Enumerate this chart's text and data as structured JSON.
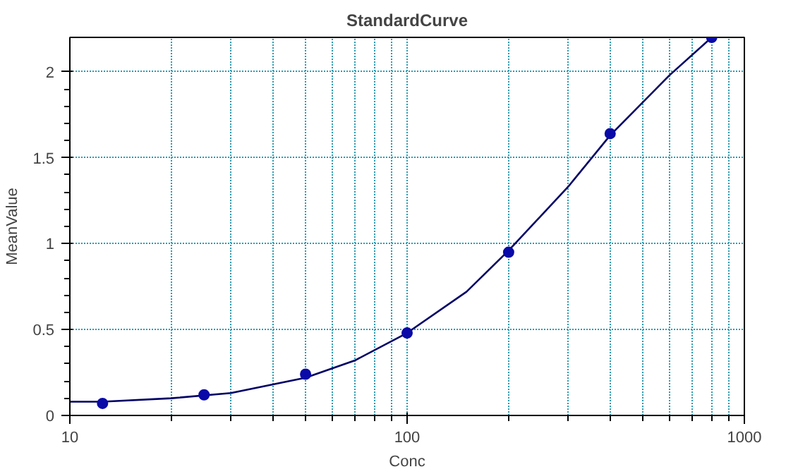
{
  "chart_data": {
    "type": "scatter",
    "title": "StandardCurve",
    "xlabel": "Conc",
    "ylabel": "MeanValue",
    "log": "x",
    "xlim": [
      10,
      1000
    ],
    "xticks": [
      10,
      100,
      1000
    ],
    "ylim": [
      0,
      2.2
    ],
    "yticks": [
      0,
      0.5,
      1,
      1.5,
      2
    ],
    "grid": true,
    "marker": "circle",
    "series": [
      {
        "color": "#0a0aa8",
        "x": [
          12.5,
          25,
          50,
          100,
          200,
          400,
          800
        ],
        "values": [
          0.07,
          0.12,
          0.24,
          0.48,
          0.95,
          1.64,
          2.2
        ]
      },
      {
        "type": "line",
        "color": "#000066",
        "line_style": "solid",
        "marker": "none",
        "x": [
          10,
          12.5,
          20,
          30,
          50,
          70,
          100,
          150,
          200,
          300,
          400,
          600,
          800
        ],
        "values": [
          0.08,
          0.08,
          0.1,
          0.13,
          0.22,
          0.32,
          0.48,
          0.72,
          0.96,
          1.33,
          1.63,
          1.98,
          2.2
        ]
      }
    ]
  }
}
